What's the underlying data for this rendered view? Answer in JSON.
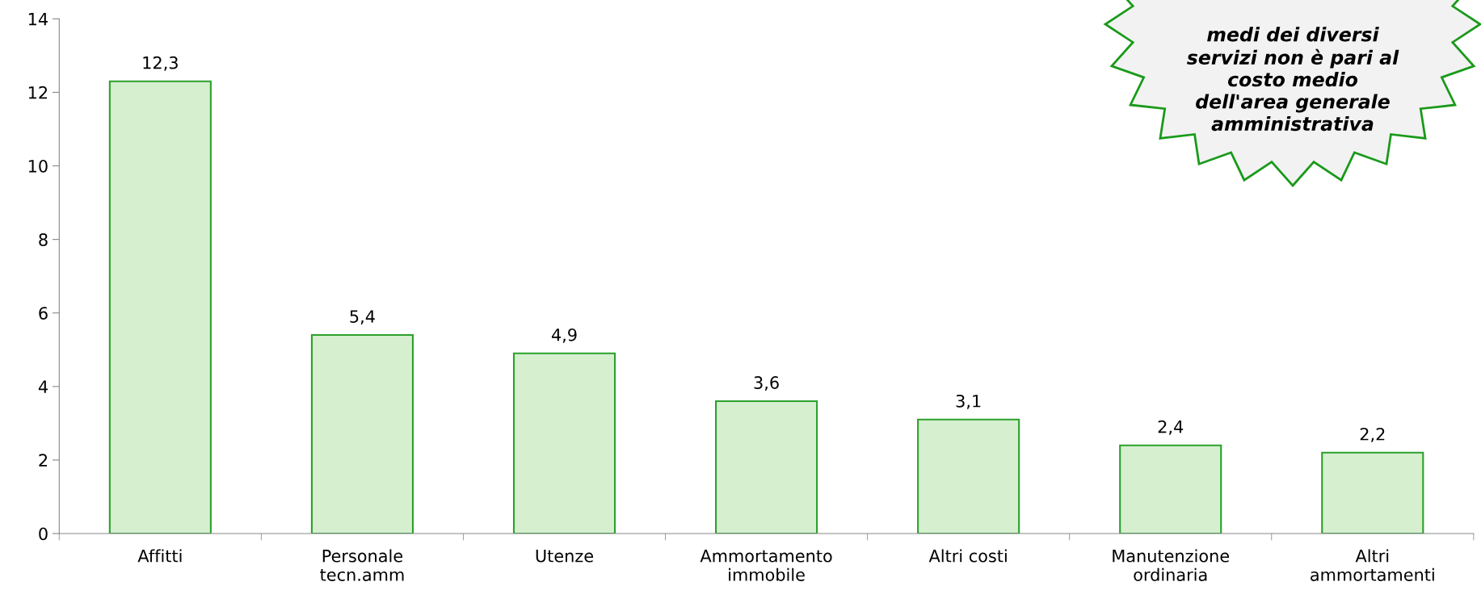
{
  "chart_data": {
    "type": "bar",
    "categories": [
      "Affitti",
      "Personale\ntecn.amm",
      "Utenze",
      "Ammortamento\nimmobile",
      "Altri costi",
      "Manutenzione\nordinaria",
      "Altri\nammortamenti"
    ],
    "values": [
      12.3,
      5.4,
      4.9,
      3.6,
      3.1,
      2.4,
      2.2
    ],
    "value_labels": [
      "12,3",
      "5,4",
      "4,9",
      "3,6",
      "3,1",
      "2,4",
      "2,2"
    ],
    "color": "#d5efcf",
    "ylim": [
      0,
      14
    ],
    "yticks": [
      0,
      2,
      4,
      6,
      8,
      10,
      12,
      14
    ],
    "grid": false,
    "annotations": [
      "medi dei diversi\nservizi non è pari al\ncosto medio\ndell'area generale\namministrativa"
    ]
  }
}
